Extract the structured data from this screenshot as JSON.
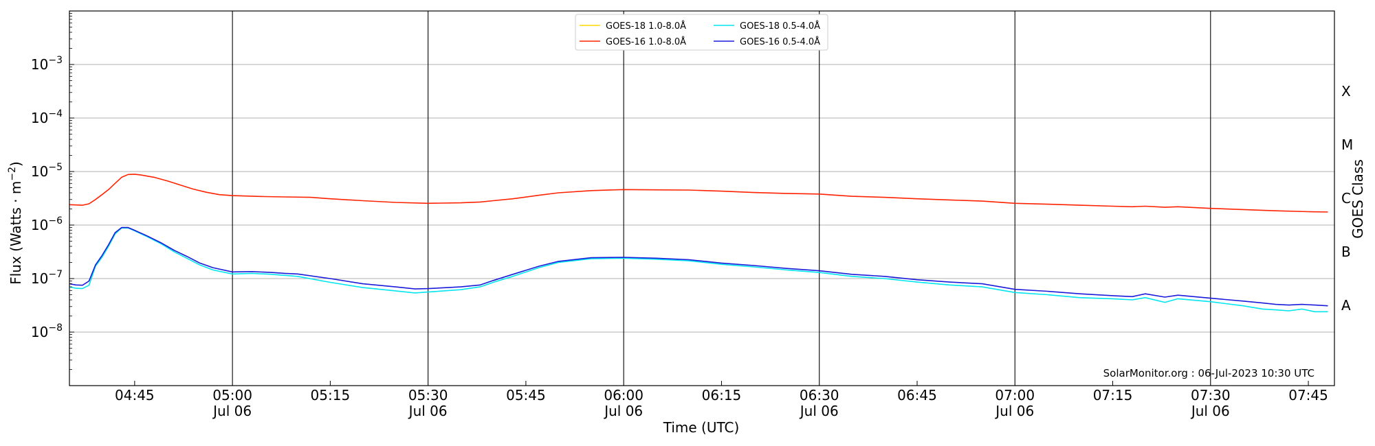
{
  "chart_data": {
    "type": "line",
    "xlabel": "Time (UTC)",
    "ylabel": "Flux (Watts · m",
    "ylabel_sup": "−2",
    "ylabel_close": ")",
    "y_scale": "log",
    "ylim": [
      1e-09,
      0.01
    ],
    "xlim": [
      "04:35",
      "07:49"
    ],
    "grid": "horizontal at decades, vertical at half-hours",
    "legend_placement": "top-center",
    "credit": "SolarMonitor.org : 06-Jul-2023 10:30 UTC",
    "y_ticks": [
      {
        "value": 1e-08,
        "base": "10",
        "exp": "−8"
      },
      {
        "value": 1e-07,
        "base": "10",
        "exp": "−7"
      },
      {
        "value": 1e-06,
        "base": "10",
        "exp": "−6"
      },
      {
        "value": 1e-05,
        "base": "10",
        "exp": "−5"
      },
      {
        "value": 0.0001,
        "base": "10",
        "exp": "−4"
      },
      {
        "value": 0.001,
        "base": "10",
        "exp": "−3"
      }
    ],
    "x_ticks": [
      {
        "time": "04:45",
        "label": "04:45",
        "date": ""
      },
      {
        "time": "05:00",
        "label": "05:00",
        "date": "Jul 06"
      },
      {
        "time": "05:15",
        "label": "05:15",
        "date": ""
      },
      {
        "time": "05:30",
        "label": "05:30",
        "date": "Jul 06"
      },
      {
        "time": "05:45",
        "label": "05:45",
        "date": ""
      },
      {
        "time": "06:00",
        "label": "06:00",
        "date": "Jul 06"
      },
      {
        "time": "06:15",
        "label": "06:15",
        "date": ""
      },
      {
        "time": "06:30",
        "label": "06:30",
        "date": "Jul 06"
      },
      {
        "time": "06:45",
        "label": "06:45",
        "date": ""
      },
      {
        "time": "07:00",
        "label": "07:00",
        "date": "Jul 06"
      },
      {
        "time": "07:15",
        "label": "07:15",
        "date": ""
      },
      {
        "time": "07:30",
        "label": "07:30",
        "date": "Jul 06"
      },
      {
        "time": "07:45",
        "label": "07:45",
        "date": ""
      }
    ],
    "class_axis": {
      "title": "GOES Class",
      "labels": [
        {
          "label": "A",
          "value": 3.16e-08
        },
        {
          "label": "B",
          "value": 3.16e-07
        },
        {
          "label": "C",
          "value": 3.16e-06
        },
        {
          "label": "M",
          "value": 3.16e-05
        },
        {
          "label": "X",
          "value": 0.000316
        }
      ]
    },
    "series": [
      {
        "name": "GOES-18 1.0-8.0Å",
        "color": "#ffd700",
        "points": []
      },
      {
        "name": "GOES-16 1.0-8.0Å",
        "color": "#ff2200",
        "points": [
          [
            "04:35",
            2.4e-06
          ],
          [
            "04:37",
            2.35e-06
          ],
          [
            "04:38",
            2.5e-06
          ],
          [
            "04:39",
            3e-06
          ],
          [
            "04:40",
            3.7e-06
          ],
          [
            "04:41",
            4.6e-06
          ],
          [
            "04:42",
            6e-06
          ],
          [
            "04:43",
            7.8e-06
          ],
          [
            "04:44",
            8.8e-06
          ],
          [
            "04:45",
            8.9e-06
          ],
          [
            "04:46",
            8.6e-06
          ],
          [
            "04:48",
            7.8e-06
          ],
          [
            "04:50",
            6.7e-06
          ],
          [
            "04:52",
            5.6e-06
          ],
          [
            "04:54",
            4.7e-06
          ],
          [
            "04:56",
            4.1e-06
          ],
          [
            "04:58",
            3.7e-06
          ],
          [
            "05:00",
            3.55e-06
          ],
          [
            "05:05",
            3.4e-06
          ],
          [
            "05:08",
            3.35e-06
          ],
          [
            "05:12",
            3.3e-06
          ],
          [
            "05:15",
            3.1e-06
          ],
          [
            "05:20",
            2.85e-06
          ],
          [
            "05:25",
            2.65e-06
          ],
          [
            "05:30",
            2.55e-06
          ],
          [
            "05:35",
            2.6e-06
          ],
          [
            "05:38",
            2.7e-06
          ],
          [
            "05:40",
            2.85e-06
          ],
          [
            "05:43",
            3.1e-06
          ],
          [
            "05:47",
            3.6e-06
          ],
          [
            "05:50",
            4e-06
          ],
          [
            "05:55",
            4.4e-06
          ],
          [
            "06:00",
            4.6e-06
          ],
          [
            "06:05",
            4.55e-06
          ],
          [
            "06:10",
            4.5e-06
          ],
          [
            "06:15",
            4.3e-06
          ],
          [
            "06:20",
            4.05e-06
          ],
          [
            "06:25",
            3.9e-06
          ],
          [
            "06:30",
            3.8e-06
          ],
          [
            "06:35",
            3.45e-06
          ],
          [
            "06:40",
            3.3e-06
          ],
          [
            "06:45",
            3.1e-06
          ],
          [
            "06:50",
            2.95e-06
          ],
          [
            "06:55",
            2.8e-06
          ],
          [
            "07:00",
            2.55e-06
          ],
          [
            "07:05",
            2.45e-06
          ],
          [
            "07:10",
            2.35e-06
          ],
          [
            "07:15",
            2.25e-06
          ],
          [
            "07:18",
            2.2e-06
          ],
          [
            "07:20",
            2.25e-06
          ],
          [
            "07:23",
            2.15e-06
          ],
          [
            "07:25",
            2.2e-06
          ],
          [
            "07:30",
            2.05e-06
          ],
          [
            "07:35",
            1.95e-06
          ],
          [
            "07:40",
            1.85e-06
          ],
          [
            "07:45",
            1.78e-06
          ],
          [
            "07:48",
            1.75e-06
          ]
        ]
      },
      {
        "name": "GOES-18 0.5-4.0Å",
        "color": "#00e5ee",
        "points": [
          [
            "04:35",
            7e-08
          ],
          [
            "04:36",
            6.6e-08
          ],
          [
            "04:37",
            6.5e-08
          ],
          [
            "04:38",
            7.5e-08
          ],
          [
            "04:39",
            1.7e-07
          ],
          [
            "04:40",
            2.5e-07
          ],
          [
            "04:41",
            4e-07
          ],
          [
            "04:42",
            6.8e-07
          ],
          [
            "04:43",
            8.8e-07
          ],
          [
            "04:44",
            8.8e-07
          ],
          [
            "04:45",
            7.8e-07
          ],
          [
            "04:47",
            6e-07
          ],
          [
            "04:49",
            4.5e-07
          ],
          [
            "04:51",
            3.2e-07
          ],
          [
            "04:53",
            2.4e-07
          ],
          [
            "04:55",
            1.8e-07
          ],
          [
            "04:57",
            1.45e-07
          ],
          [
            "05:00",
            1.22e-07
          ],
          [
            "05:03",
            1.25e-07
          ],
          [
            "05:06",
            1.2e-07
          ],
          [
            "05:08",
            1.15e-07
          ],
          [
            "05:10",
            1.1e-07
          ],
          [
            "05:15",
            8.5e-08
          ],
          [
            "05:20",
            6.8e-08
          ],
          [
            "05:25",
            5.9e-08
          ],
          [
            "05:28",
            5.4e-08
          ],
          [
            "05:30",
            5.6e-08
          ],
          [
            "05:35",
            6.2e-08
          ],
          [
            "05:38",
            7e-08
          ],
          [
            "05:40",
            8.5e-08
          ],
          [
            "05:43",
            1.1e-07
          ],
          [
            "05:47",
            1.6e-07
          ],
          [
            "05:50",
            2e-07
          ],
          [
            "05:55",
            2.35e-07
          ],
          [
            "06:00",
            2.4e-07
          ],
          [
            "06:05",
            2.3e-07
          ],
          [
            "06:10",
            2.15e-07
          ],
          [
            "06:15",
            1.85e-07
          ],
          [
            "06:20",
            1.65e-07
          ],
          [
            "06:25",
            1.45e-07
          ],
          [
            "06:30",
            1.3e-07
          ],
          [
            "06:35",
            1.1e-07
          ],
          [
            "06:40",
            1e-07
          ],
          [
            "06:45",
            8.6e-08
          ],
          [
            "06:50",
            7.6e-08
          ],
          [
            "06:55",
            7e-08
          ],
          [
            "07:00",
            5.5e-08
          ],
          [
            "07:05",
            5e-08
          ],
          [
            "07:10",
            4.4e-08
          ],
          [
            "07:15",
            4.2e-08
          ],
          [
            "07:18",
            4e-08
          ],
          [
            "07:20",
            4.4e-08
          ],
          [
            "07:23",
            3.6e-08
          ],
          [
            "07:25",
            4.2e-08
          ],
          [
            "07:30",
            3.7e-08
          ],
          [
            "07:35",
            3.1e-08
          ],
          [
            "07:38",
            2.7e-08
          ],
          [
            "07:40",
            2.6e-08
          ],
          [
            "07:42",
            2.5e-08
          ],
          [
            "07:44",
            2.7e-08
          ],
          [
            "07:46",
            2.4e-08
          ],
          [
            "07:48",
            2.4e-08
          ]
        ]
      },
      {
        "name": "GOES-16 0.5-4.0Å",
        "color": "#1a1adb",
        "points": [
          [
            "04:35",
            8e-08
          ],
          [
            "04:36",
            7.6e-08
          ],
          [
            "04:37",
            7.5e-08
          ],
          [
            "04:38",
            9e-08
          ],
          [
            "04:39",
            1.8e-07
          ],
          [
            "04:40",
            2.7e-07
          ],
          [
            "04:41",
            4.3e-07
          ],
          [
            "04:42",
            7.2e-07
          ],
          [
            "04:43",
            9e-07
          ],
          [
            "04:44",
            9e-07
          ],
          [
            "04:45",
            8e-07
          ],
          [
            "04:47",
            6.2e-07
          ],
          [
            "04:49",
            4.7e-07
          ],
          [
            "04:51",
            3.4e-07
          ],
          [
            "04:53",
            2.6e-07
          ],
          [
            "04:55",
            1.95e-07
          ],
          [
            "04:57",
            1.6e-07
          ],
          [
            "05:00",
            1.33e-07
          ],
          [
            "05:03",
            1.35e-07
          ],
          [
            "05:06",
            1.3e-07
          ],
          [
            "05:08",
            1.25e-07
          ],
          [
            "05:10",
            1.22e-07
          ],
          [
            "05:15",
            1e-07
          ],
          [
            "05:20",
            8e-08
          ],
          [
            "05:25",
            7e-08
          ],
          [
            "05:28",
            6.4e-08
          ],
          [
            "05:30",
            6.5e-08
          ],
          [
            "05:35",
            7e-08
          ],
          [
            "05:38",
            7.6e-08
          ],
          [
            "05:40",
            9.2e-08
          ],
          [
            "05:43",
            1.2e-07
          ],
          [
            "05:47",
            1.7e-07
          ],
          [
            "05:50",
            2.1e-07
          ],
          [
            "05:55",
            2.45e-07
          ],
          [
            "06:00",
            2.5e-07
          ],
          [
            "06:05",
            2.4e-07
          ],
          [
            "06:10",
            2.25e-07
          ],
          [
            "06:15",
            1.95e-07
          ],
          [
            "06:20",
            1.75e-07
          ],
          [
            "06:25",
            1.55e-07
          ],
          [
            "06:30",
            1.4e-07
          ],
          [
            "06:35",
            1.2e-07
          ],
          [
            "06:40",
            1.1e-07
          ],
          [
            "06:45",
            9.5e-08
          ],
          [
            "06:50",
            8.6e-08
          ],
          [
            "06:55",
            8e-08
          ],
          [
            "07:00",
            6.3e-08
          ],
          [
            "07:05",
            5.8e-08
          ],
          [
            "07:10",
            5.2e-08
          ],
          [
            "07:15",
            4.8e-08
          ],
          [
            "07:18",
            4.6e-08
          ],
          [
            "07:20",
            5.2e-08
          ],
          [
            "07:23",
            4.5e-08
          ],
          [
            "07:25",
            4.9e-08
          ],
          [
            "07:30",
            4.3e-08
          ],
          [
            "07:35",
            3.8e-08
          ],
          [
            "07:38",
            3.5e-08
          ],
          [
            "07:40",
            3.3e-08
          ],
          [
            "07:42",
            3.2e-08
          ],
          [
            "07:44",
            3.3e-08
          ],
          [
            "07:46",
            3.2e-08
          ],
          [
            "07:48",
            3.1e-08
          ]
        ]
      }
    ]
  }
}
